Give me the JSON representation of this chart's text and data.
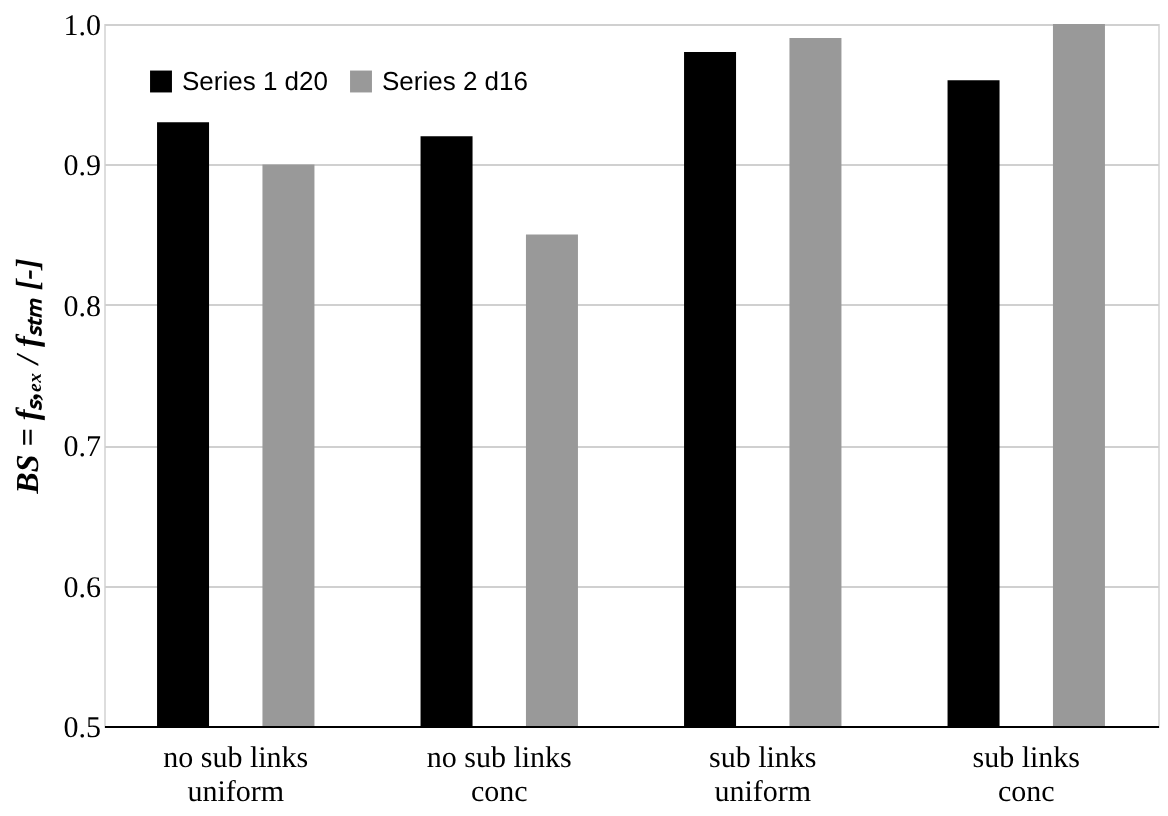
{
  "chart_data": {
    "type": "bar",
    "ylabel": "BS = fₛ,ₑₓ / fₛₜₘ   [-]",
    "categories": [
      "no sub links\nuniform",
      "no sub links\nconc",
      "sub links\nuniform",
      "sub links\nconc"
    ],
    "series": [
      {
        "name": "Series 1 d20",
        "color": "#000000",
        "values": [
          0.93,
          0.92,
          0.98,
          0.96
        ]
      },
      {
        "name": "Series 2 d16",
        "color": "#999999",
        "values": [
          0.9,
          0.85,
          0.99,
          1.0
        ]
      }
    ],
    "ylim": [
      0.5,
      1.0
    ],
    "yticks": [
      {
        "value": 0.5,
        "label": "0.5"
      },
      {
        "value": 0.6,
        "label": "0.6"
      },
      {
        "value": 0.7,
        "label": "0.7"
      },
      {
        "value": 0.8,
        "label": "0.8"
      },
      {
        "value": 0.9,
        "label": "0.9"
      },
      {
        "value": 1.0,
        "label": "1.0"
      }
    ],
    "grid": "y",
    "legend": "top left"
  }
}
